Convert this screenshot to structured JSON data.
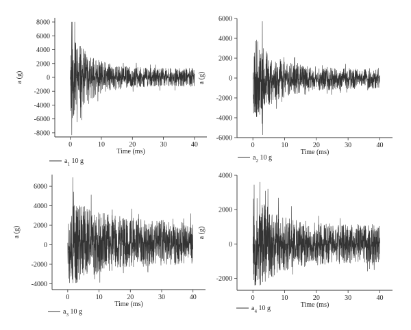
{
  "chart_data": [
    {
      "type": "line",
      "xlabel": "Time (ms)",
      "ylabel": "a (g)",
      "xlim": [
        -5,
        44
      ],
      "ylim": [
        -8600,
        8600
      ],
      "xticks": [
        0,
        10,
        20,
        30,
        40
      ],
      "yticks": [
        -8000,
        -6000,
        -4000,
        -2000,
        0,
        2000,
        4000,
        6000,
        8000
      ],
      "grid": false,
      "legend_position": "below-left",
      "series": [
        {
          "name": "a",
          "name_subscript": "1",
          "name_suffix": " 10 g",
          "color": "#333333",
          "signal": {
            "start": 0,
            "end": 40,
            "samples": 1100,
            "seed": 11,
            "peak_positive": 8000,
            "peak_negative": -8300,
            "peak_time": 0.4,
            "early_amplitude": 7000,
            "late_amplitude": 1300,
            "decay_ms": 6,
            "baseline": 0
          }
        }
      ]
    },
    {
      "type": "line",
      "xlabel": "Time (ms)",
      "ylabel": "a (g)",
      "xlim": [
        -5,
        44
      ],
      "ylim": [
        -6000,
        6000
      ],
      "xticks": [
        0,
        10,
        20,
        30,
        40
      ],
      "yticks": [
        -6000,
        -4000,
        -2000,
        0,
        2000,
        4000,
        6000
      ],
      "grid": false,
      "legend_position": "below-left",
      "series": [
        {
          "name": "a",
          "name_subscript": "2",
          "name_suffix": " 10 g",
          "color": "#333333",
          "signal": {
            "start": 0,
            "end": 40,
            "samples": 1100,
            "seed": 23,
            "peak_positive": 5700,
            "peak_negative": -5700,
            "peak_time": 3.0,
            "early_amplitude": 4500,
            "late_amplitude": 1000,
            "decay_ms": 7,
            "baseline": -100
          }
        }
      ]
    },
    {
      "type": "line",
      "xlabel": "Time (ms)",
      "ylabel": "a (g)",
      "xlim": [
        -5,
        44
      ],
      "ylim": [
        -4600,
        7200
      ],
      "xticks": [
        0,
        10,
        20,
        30,
        40
      ],
      "yticks": [
        -4000,
        -2000,
        0,
        2000,
        4000,
        6000
      ],
      "grid": false,
      "legend_position": "below-left",
      "series": [
        {
          "name": "a",
          "name_subscript": "3",
          "name_suffix": " 10 g",
          "color": "#333333",
          "signal": {
            "start": 0,
            "end": 40,
            "samples": 1100,
            "seed": 37,
            "peak_positive": 6900,
            "peak_negative": -3900,
            "peak_time": 1.6,
            "early_amplitude": 5000,
            "late_amplitude": 2200,
            "decay_ms": 10,
            "baseline": 200
          }
        }
      ]
    },
    {
      "type": "line",
      "xlabel": "Time (ms)",
      "ylabel": "a (g)",
      "xlim": [
        -5,
        44
      ],
      "ylim": [
        -2700,
        4000
      ],
      "xticks": [
        0,
        10,
        20,
        30,
        40
      ],
      "yticks": [
        -2000,
        0,
        2000,
        4000
      ],
      "grid": false,
      "legend_position": "below-left",
      "series": [
        {
          "name": "a",
          "name_subscript": "4",
          "name_suffix": " 10 g",
          "color": "#333333",
          "signal": {
            "start": 0,
            "end": 40,
            "samples": 1100,
            "seed": 53,
            "peak_positive": 3600,
            "peak_negative": -2400,
            "peak_time": 2.2,
            "early_amplitude": 3000,
            "late_amplitude": 1100,
            "decay_ms": 8,
            "baseline": 0
          }
        }
      ]
    }
  ]
}
